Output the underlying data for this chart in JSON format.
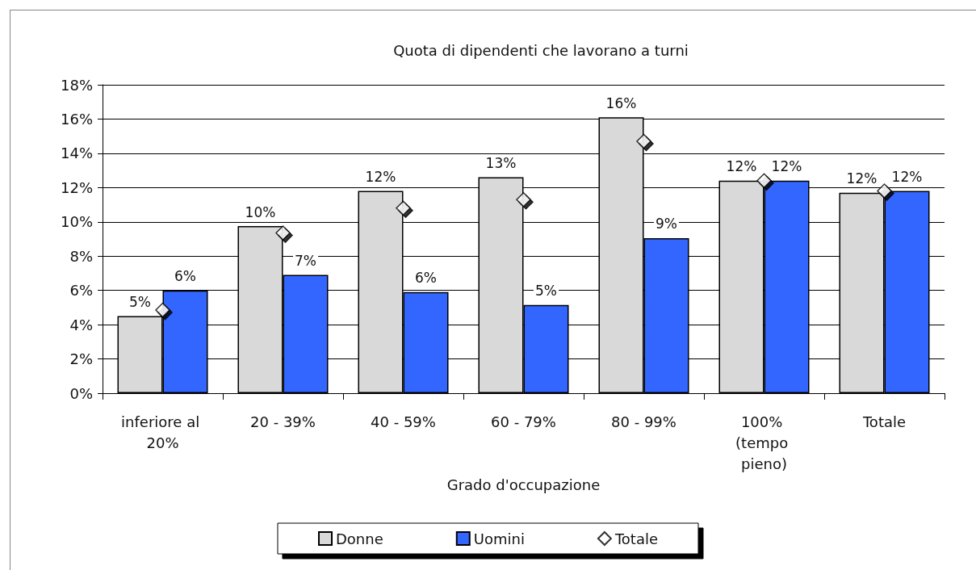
{
  "chart_data": {
    "type": "bar",
    "title": "Quota di dipendenti che lavorano a turni",
    "xlabel": "Grado d'occupazione",
    "categories": [
      "inferiore al 20%",
      "20 - 39%",
      "40 - 59%",
      "60 - 79%",
      "80 - 99%",
      "100% (tempo pieno)",
      "Totale"
    ],
    "series": [
      {
        "name": "Donne",
        "color": "#d9d9d9",
        "values": [
          4.5,
          9.75,
          11.8,
          12.6,
          16.1,
          12.4,
          11.7
        ],
        "value_labels": [
          "5%",
          "10%",
          "12%",
          "13%",
          "16%",
          "12%",
          "12%"
        ]
      },
      {
        "name": "Uomini",
        "color": "#3366ff",
        "values": [
          6.0,
          6.9,
          5.9,
          5.15,
          9.05,
          12.4,
          11.8
        ],
        "value_labels": [
          "6%",
          "7%",
          "6%",
          "5%",
          "9%",
          "12%",
          "12%"
        ]
      },
      {
        "name": "Totale",
        "type": "scatter",
        "marker": "diamond",
        "color": "#ffffff",
        "x": [
          "inferiore al 20%",
          "20 - 39%",
          "40 - 59%",
          "60 - 79%",
          "80 - 99%",
          "100% (tempo pieno)",
          "Totale"
        ],
        "values": [
          4.85,
          9.35,
          10.8,
          11.3,
          14.7,
          12.4,
          11.8
        ]
      }
    ],
    "ylim": [
      0,
      18
    ],
    "yticks": [
      {
        "value": 0,
        "label": "0%"
      },
      {
        "value": 2,
        "label": "2%"
      },
      {
        "value": 4,
        "label": "4%"
      },
      {
        "value": 6,
        "label": "6%"
      },
      {
        "value": 8,
        "label": "8%"
      },
      {
        "value": 10,
        "label": "10%"
      },
      {
        "value": 12,
        "label": "12%"
      },
      {
        "value": 14,
        "label": "14%"
      },
      {
        "value": 16,
        "label": "16%"
      },
      {
        "value": 18,
        "label": "18%"
      }
    ],
    "grid": "y",
    "legend": "bottom"
  }
}
